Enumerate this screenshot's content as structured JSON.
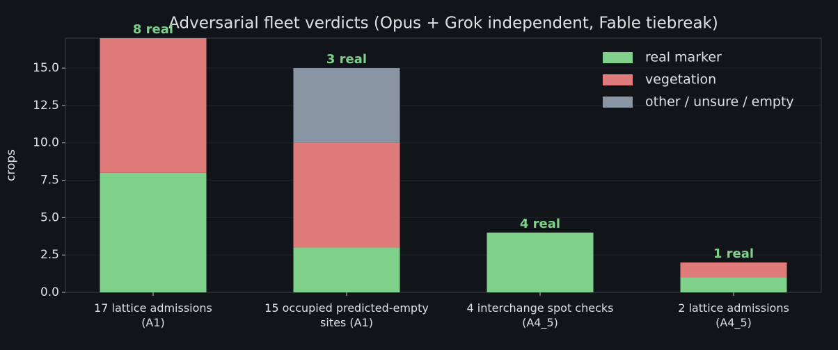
{
  "chart_data": {
    "type": "stacked_bar",
    "title": "Adversarial fleet verdicts (Opus + Grok independent, Fable tiebreak)",
    "y_label": "crops",
    "categories": [
      "17 lattice admissions\n(A1)",
      "15 occupied predicted-empty\nsites (A1)",
      "4 interchange spot checks\n(A4_5)",
      "2 lattice admissions\n(A4_5)"
    ],
    "series": [
      {
        "name": "real marker",
        "color": "#7fd08b",
        "values": [
          8,
          3,
          4,
          1
        ],
        "value_labels": [
          "8 real",
          "3 real",
          "4 real",
          "1 real"
        ]
      },
      {
        "name": "vegetation",
        "color": "#e07b7b",
        "values": [
          9,
          7,
          0,
          1
        ]
      },
      {
        "name": "other / unsure / empty",
        "color": "#8a95a3",
        "values": [
          0,
          5,
          0,
          0
        ]
      }
    ],
    "ylim": [
      0,
      17
    ],
    "yticks": [
      {
        "value": 0,
        "label": "0.0"
      },
      2.5,
      {
        "value": 5,
        "label": "5.0"
      },
      7.5,
      {
        "value": 10,
        "label": "10.0"
      },
      12.5,
      {
        "value": 15,
        "label": "15.0"
      }
    ],
    "grid": true,
    "legend": "upper right"
  }
}
